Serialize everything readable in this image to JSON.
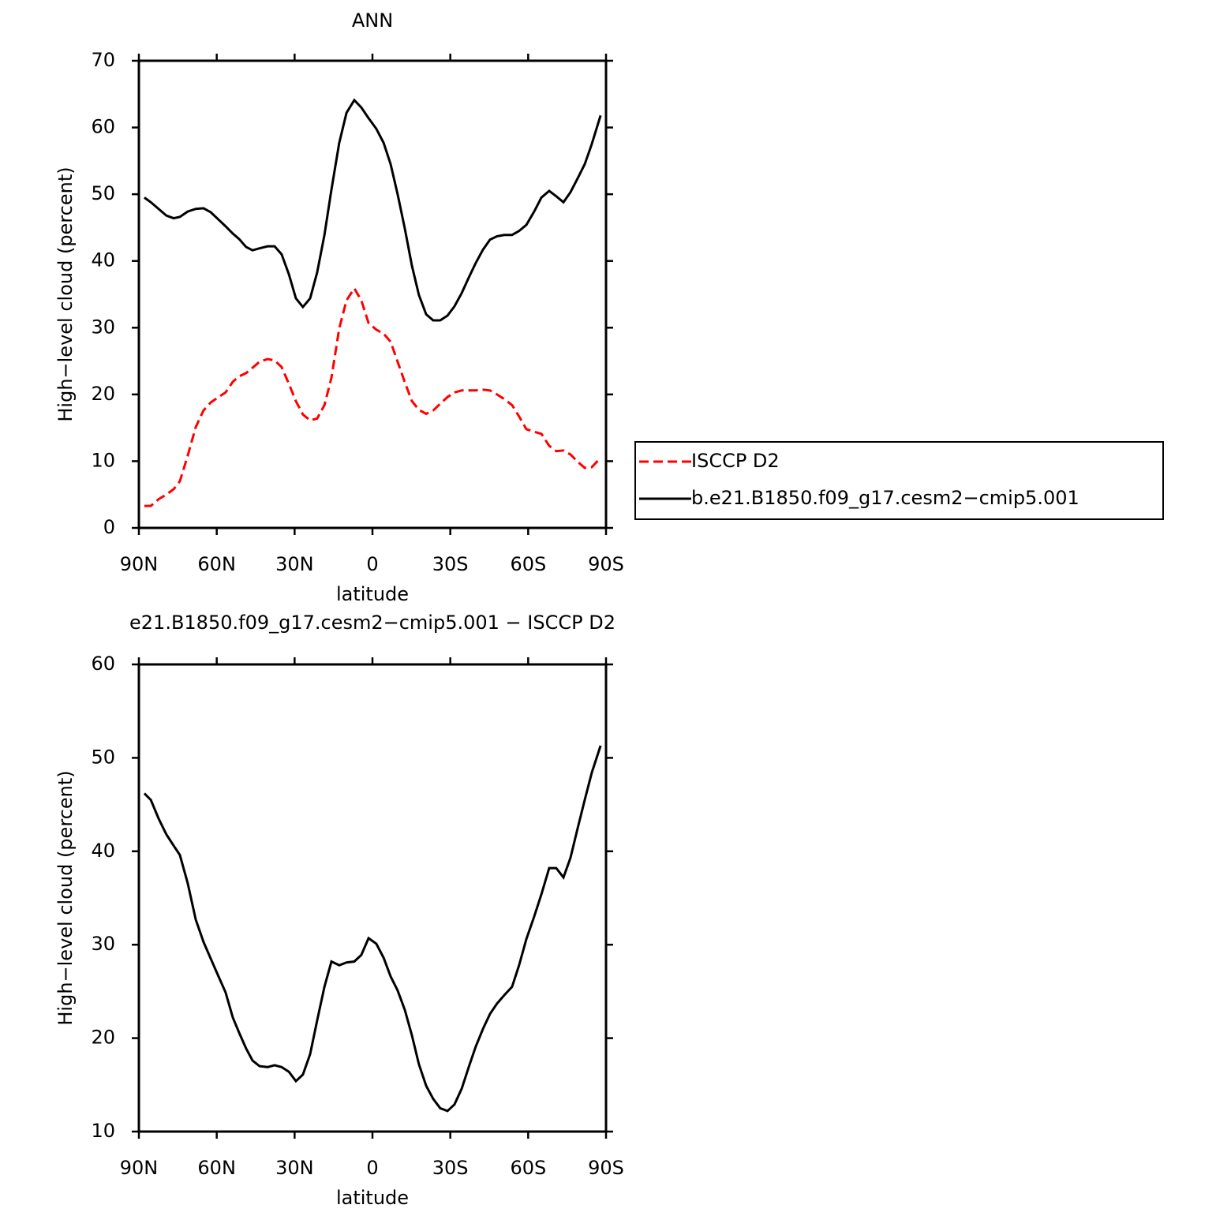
{
  "chart_data": [
    {
      "type": "line",
      "title": "ANN",
      "x_label": "latitude",
      "y_label": "High−level cloud (percent)",
      "x": [
        87.9,
        85.4,
        82.4,
        79.4,
        76.6,
        74.2,
        71.2,
        68.1,
        65.1,
        62.3,
        59.3,
        56.6,
        53.8,
        51.4,
        48.7,
        46.2,
        43.5,
        40.4,
        37.7,
        35.0,
        32.2,
        29.5,
        26.8,
        24.0,
        21.3,
        18.5,
        15.8,
        12.8,
        10.0,
        7.0,
        4.3,
        1.5,
        -1.5,
        -4.3,
        -7.0,
        -9.7,
        -12.5,
        -15.2,
        -17.9,
        -20.7,
        -23.4,
        -26.1,
        -28.9,
        -31.6,
        -34.4,
        -37.1,
        -39.8,
        -42.6,
        -45.3,
        -48.0,
        -50.8,
        -53.8,
        -56.5,
        -59.3,
        -62.3,
        -65.1,
        -68.1,
        -70.8,
        -73.6,
        -76.3,
        -79.1,
        -81.8,
        -84.5,
        -87.9
      ],
      "series": [
        {
          "name": "ISCCP D2",
          "color": "#ff0000",
          "line_style": "dashed",
          "values": [
            3.3,
            3.3,
            4.3,
            5.0,
            5.8,
            7.0,
            10.8,
            15.1,
            17.6,
            18.8,
            19.6,
            20.3,
            21.9,
            22.7,
            23.2,
            24.0,
            24.9,
            25.3,
            25.1,
            24.1,
            21.6,
            19.0,
            17.0,
            16.1,
            16.4,
            18.4,
            22.5,
            29.9,
            34.1,
            35.9,
            34.1,
            30.7,
            29.7,
            29.1,
            27.9,
            24.9,
            21.8,
            19.0,
            17.7,
            17.1,
            17.6,
            18.6,
            19.6,
            20.3,
            20.6,
            20.6,
            20.6,
            20.7,
            20.6,
            20.0,
            19.3,
            18.4,
            16.7,
            14.8,
            14.4,
            14.1,
            12.3,
            11.5,
            11.6,
            11.0,
            9.9,
            9.0,
            9.1,
            10.5
          ]
        },
        {
          "name": "b.e21.B1850.f09_g17.cesm2−cmip5.001",
          "color": "#000000",
          "line_style": "solid",
          "values": [
            49.5,
            48.8,
            47.8,
            46.8,
            46.4,
            46.6,
            47.4,
            47.8,
            47.9,
            47.3,
            46.2,
            45.2,
            44.1,
            43.3,
            42.1,
            41.6,
            41.9,
            42.2,
            42.2,
            41.0,
            38.0,
            34.4,
            33.1,
            34.4,
            38.3,
            43.9,
            50.7,
            57.7,
            62.2,
            64.1,
            63.0,
            61.4,
            59.8,
            57.7,
            54.5,
            50.0,
            44.8,
            39.3,
            34.9,
            32.0,
            31.1,
            31.1,
            31.8,
            33.2,
            35.2,
            37.5,
            39.7,
            41.7,
            43.2,
            43.7,
            43.9,
            43.9,
            44.5,
            45.4,
            47.4,
            49.5,
            50.5,
            49.7,
            48.8,
            50.3,
            52.4,
            54.5,
            57.5,
            61.8
          ]
        }
      ],
      "xlim": [
        90,
        -90
      ],
      "ylim": [
        0,
        70
      ],
      "xticks": [
        {
          "value": 90,
          "label": "90N"
        },
        {
          "value": 60,
          "label": "60N"
        },
        {
          "value": 30,
          "label": "30N"
        },
        0,
        {
          "value": -30,
          "label": "30S"
        },
        {
          "value": -60,
          "label": "60S"
        },
        {
          "value": -90,
          "label": "90S"
        }
      ],
      "yticks": [
        0,
        10,
        20,
        30,
        40,
        50,
        60,
        70
      ],
      "legend": "outside-right"
    },
    {
      "type": "line",
      "title": "e21.B1850.f09_g17.cesm2−cmip5.001 − ISCCP D2",
      "x_label": "latitude",
      "y_label": "High−level cloud (percent)",
      "x": [
        87.9,
        85.4,
        82.4,
        79.4,
        76.6,
        74.2,
        71.2,
        68.1,
        65.1,
        62.3,
        59.3,
        56.6,
        53.8,
        51.4,
        48.7,
        46.2,
        43.5,
        40.4,
        37.7,
        35.0,
        32.2,
        29.5,
        26.8,
        24.0,
        21.3,
        18.5,
        15.8,
        12.8,
        10.0,
        7.0,
        4.3,
        1.5,
        -1.5,
        -4.3,
        -7.0,
        -9.7,
        -12.5,
        -15.2,
        -17.9,
        -20.7,
        -23.4,
        -26.1,
        -28.9,
        -31.6,
        -34.4,
        -37.1,
        -39.8,
        -42.6,
        -45.3,
        -48.0,
        -50.8,
        -53.8,
        -56.5,
        -59.3,
        -62.3,
        -65.1,
        -68.1,
        -70.8,
        -73.6,
        -76.3,
        -79.1,
        -81.8,
        -84.5,
        -87.9
      ],
      "series": [
        {
          "color": "#000000",
          "line_style": "solid",
          "values": [
            46.2,
            45.5,
            43.5,
            41.8,
            40.6,
            39.6,
            36.6,
            32.7,
            30.3,
            28.5,
            26.6,
            24.9,
            22.2,
            20.6,
            18.9,
            17.6,
            17.0,
            16.9,
            17.1,
            16.9,
            16.4,
            15.4,
            16.1,
            18.3,
            21.9,
            25.5,
            28.2,
            27.8,
            28.1,
            28.2,
            28.9,
            30.7,
            30.1,
            28.6,
            26.6,
            25.1,
            23.0,
            20.3,
            17.2,
            14.9,
            13.5,
            12.5,
            12.2,
            12.9,
            14.6,
            16.9,
            19.1,
            21.0,
            22.6,
            23.7,
            24.6,
            25.5,
            27.8,
            30.6,
            33.0,
            35.4,
            38.2,
            38.2,
            37.2,
            39.3,
            42.5,
            45.5,
            48.4,
            51.3
          ]
        }
      ],
      "xlim": [
        90,
        -90
      ],
      "ylim": [
        10,
        60
      ],
      "xticks": [
        {
          "value": 90,
          "label": "90N"
        },
        {
          "value": 60,
          "label": "60N"
        },
        {
          "value": 30,
          "label": "30N"
        },
        0,
        {
          "value": -30,
          "label": "30S"
        },
        {
          "value": -60,
          "label": "60S"
        },
        {
          "value": -90,
          "label": "90S"
        }
      ],
      "yticks": [
        10,
        20,
        30,
        40,
        50,
        60
      ]
    }
  ]
}
